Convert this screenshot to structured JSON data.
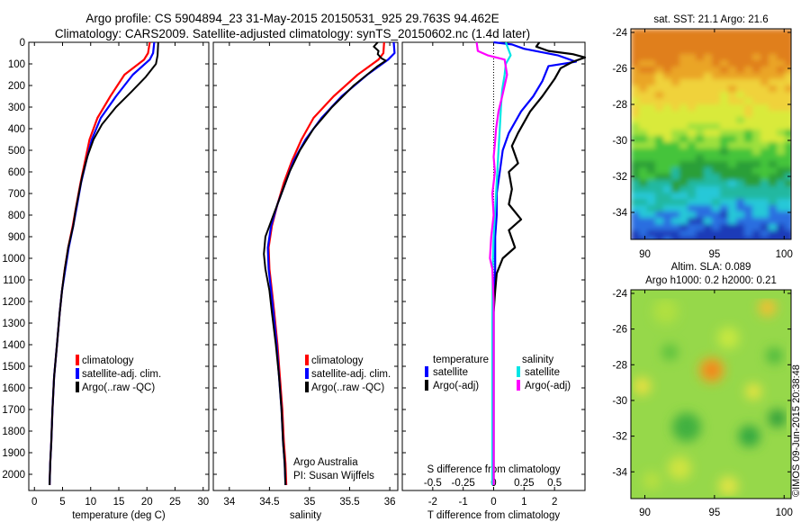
{
  "header": {
    "line1": "Argo profile: CS 5904894_23 31-May-2015 20150531_925 29.763S 94.462E",
    "line2": "Climatology: CARS2009. Satellite-adjusted climatology: synTS_20150602.nc (1.4d later)"
  },
  "credit": "©IMOS 09-Jun-2015 20:38:48",
  "colors": {
    "climatology": "#ff0000",
    "satellite": "#0000ff",
    "argo": "#000000",
    "s_satellite": "#00e5e5",
    "s_argo": "#ff00ff"
  },
  "chart_data": [
    {
      "id": "temperature",
      "type": "line",
      "xlabel": "temperature (deg C)",
      "ylabel": "",
      "xlim": [
        -1,
        31
      ],
      "ylim": [
        2075,
        0
      ],
      "xticks": [
        0,
        5,
        10,
        15,
        20,
        25,
        30
      ],
      "yticks": [
        0,
        100,
        200,
        300,
        400,
        500,
        600,
        700,
        800,
        900,
        1000,
        1100,
        1200,
        1300,
        1400,
        1500,
        1600,
        1700,
        1800,
        1900,
        2000
      ],
      "legend": [
        "climatology",
        "satellite-adj. clim.",
        "Argo(..raw -QC)"
      ],
      "series": [
        {
          "name": "climatology",
          "color": "#ff0000",
          "points": [
            [
              20.5,
              0
            ],
            [
              20.2,
              50
            ],
            [
              19.5,
              80
            ],
            [
              16,
              150
            ],
            [
              13.5,
              250
            ],
            [
              11.2,
              350
            ],
            [
              9.8,
              450
            ],
            [
              9,
              550
            ],
            [
              8.2,
              650
            ],
            [
              7.5,
              750
            ],
            [
              6.8,
              850
            ],
            [
              6,
              950
            ],
            [
              5.4,
              1050
            ],
            [
              4.9,
              1150
            ],
            [
              4.5,
              1250
            ],
            [
              4,
              1400
            ],
            [
              3.5,
              1550
            ],
            [
              3.2,
              1700
            ],
            [
              3,
              1850
            ],
            [
              2.8,
              1950
            ],
            [
              2.7,
              2050
            ]
          ]
        },
        {
          "name": "satellite-adj. clim.",
          "color": "#0000ff",
          "points": [
            [
              21.3,
              0
            ],
            [
              21.1,
              50
            ],
            [
              20.5,
              80
            ],
            [
              17.5,
              150
            ],
            [
              14.5,
              250
            ],
            [
              11.8,
              350
            ],
            [
              10.2,
              450
            ],
            [
              9.2,
              550
            ],
            [
              8.3,
              650
            ],
            [
              7.6,
              750
            ],
            [
              6.9,
              850
            ],
            [
              6.1,
              950
            ],
            [
              5.5,
              1050
            ],
            [
              4.9,
              1150
            ],
            [
              4.5,
              1250
            ],
            [
              4,
              1400
            ],
            [
              3.5,
              1550
            ],
            [
              3.2,
              1700
            ],
            [
              3,
              1850
            ],
            [
              2.8,
              1950
            ],
            [
              2.7,
              2050
            ]
          ]
        },
        {
          "name": "Argo(..raw -QC)",
          "color": "#000000",
          "points": [
            [
              22,
              0
            ],
            [
              21.9,
              60
            ],
            [
              21.6,
              100
            ],
            [
              19.8,
              160
            ],
            [
              17.2,
              230
            ],
            [
              14.5,
              300
            ],
            [
              12,
              380
            ],
            [
              10.5,
              450
            ],
            [
              9.4,
              530
            ],
            [
              8.5,
              620
            ],
            [
              7.9,
              700
            ],
            [
              7.3,
              780
            ],
            [
              6.9,
              850
            ],
            [
              6,
              950
            ],
            [
              5.4,
              1050
            ],
            [
              4.9,
              1150
            ],
            [
              4.5,
              1250
            ],
            [
              4,
              1400
            ],
            [
              3.5,
              1550
            ],
            [
              3.2,
              1700
            ],
            [
              3,
              1850
            ],
            [
              2.8,
              1950
            ],
            [
              2.7,
              2050
            ]
          ]
        }
      ]
    },
    {
      "id": "salinity",
      "type": "line",
      "xlabel": "salinity",
      "ylabel": "",
      "xlim": [
        33.8,
        36.1
      ],
      "ylim": [
        2075,
        0
      ],
      "xticks": [
        34,
        34.5,
        35,
        35.5,
        36
      ],
      "legend": [
        "climatology",
        "satellite-adj. clim.",
        "Argo(..raw -QC)"
      ],
      "annotation": [
        "Argo Australia",
        "PI: Susan Wijffels"
      ],
      "series": [
        {
          "name": "climatology",
          "color": "#ff0000",
          "points": [
            [
              35.93,
              0
            ],
            [
              35.92,
              50
            ],
            [
              35.86,
              80
            ],
            [
              35.6,
              150
            ],
            [
              35.3,
              250
            ],
            [
              35.05,
              350
            ],
            [
              34.9,
              450
            ],
            [
              34.78,
              550
            ],
            [
              34.68,
              650
            ],
            [
              34.6,
              750
            ],
            [
              34.53,
              850
            ],
            [
              34.49,
              950
            ],
            [
              34.5,
              1050
            ],
            [
              34.53,
              1150
            ],
            [
              34.56,
              1250
            ],
            [
              34.6,
              1400
            ],
            [
              34.63,
              1550
            ],
            [
              34.66,
              1700
            ],
            [
              34.68,
              1850
            ],
            [
              34.7,
              1950
            ],
            [
              34.71,
              2050
            ]
          ]
        },
        {
          "name": "satellite-adj. clim.",
          "color": "#0000ff",
          "points": [
            [
              36.05,
              0
            ],
            [
              36.06,
              50
            ],
            [
              35.98,
              80
            ],
            [
              35.72,
              150
            ],
            [
              35.4,
              250
            ],
            [
              35.15,
              350
            ],
            [
              34.95,
              450
            ],
            [
              34.8,
              550
            ],
            [
              34.7,
              650
            ],
            [
              34.6,
              750
            ],
            [
              34.52,
              850
            ],
            [
              34.48,
              950
            ],
            [
              34.49,
              1050
            ],
            [
              34.52,
              1150
            ],
            [
              34.55,
              1250
            ],
            [
              34.59,
              1400
            ],
            [
              34.62,
              1550
            ],
            [
              34.65,
              1700
            ],
            [
              34.67,
              1850
            ],
            [
              34.69,
              1950
            ],
            [
              34.7,
              2050
            ]
          ]
        },
        {
          "name": "Argo(..raw -QC)",
          "color": "#000000",
          "points": [
            [
              35.85,
              0
            ],
            [
              35.8,
              20
            ],
            [
              35.86,
              40
            ],
            [
              35.85,
              55
            ],
            [
              35.9,
              75
            ],
            [
              35.95,
              85
            ],
            [
              35.85,
              110
            ],
            [
              35.75,
              140
            ],
            [
              35.55,
              200
            ],
            [
              35.28,
              300
            ],
            [
              35.05,
              400
            ],
            [
              34.88,
              500
            ],
            [
              34.75,
              600
            ],
            [
              34.65,
              700
            ],
            [
              34.55,
              800
            ],
            [
              34.45,
              900
            ],
            [
              34.43,
              980
            ],
            [
              34.45,
              1050
            ],
            [
              34.5,
              1150
            ],
            [
              34.53,
              1250
            ],
            [
              34.58,
              1400
            ],
            [
              34.62,
              1550
            ],
            [
              34.65,
              1700
            ],
            [
              34.67,
              1850
            ],
            [
              34.69,
              1950
            ],
            [
              34.7,
              2050
            ]
          ]
        }
      ]
    },
    {
      "id": "difference",
      "type": "line",
      "xlabel": "T difference from climatology",
      "ylabel": "",
      "xlim": [
        -3,
        3
      ],
      "ylim": [
        2075,
        0
      ],
      "xticks": [
        -2,
        -1,
        0,
        1,
        2
      ],
      "xlabel_top": "S difference from climatology",
      "xticks_top": [
        "-0.5",
        "-0.25",
        "0",
        "0.25",
        "0.5"
      ],
      "legend_headers": [
        "temperature",
        "salinity"
      ],
      "legend_left": [
        "satellite",
        "Argo(-adj)"
      ],
      "legend_right": [
        "satellite",
        "Argo(-adj)"
      ],
      "series": [
        {
          "name": "T satellite",
          "color": "#0000ff",
          "points": [
            [
              0,
              0
            ],
            [
              0.6,
              10
            ],
            [
              1,
              30
            ],
            [
              2.1,
              60
            ],
            [
              2.7,
              90
            ],
            [
              1.8,
              110
            ],
            [
              1.6,
              180
            ],
            [
              1.3,
              250
            ],
            [
              0.9,
              320
            ],
            [
              0.5,
              420
            ],
            [
              0.3,
              500
            ],
            [
              0.2,
              600
            ],
            [
              0.1,
              700
            ],
            [
              0.1,
              800
            ],
            [
              0.05,
              900
            ],
            [
              0.05,
              1050
            ],
            [
              0,
              1200
            ],
            [
              0,
              1400
            ],
            [
              0,
              1600
            ],
            [
              0,
              1800
            ],
            [
              0,
              2050
            ]
          ]
        },
        {
          "name": "T Argo(-adj)",
          "color": "#000000",
          "points": [
            [
              1.5,
              0
            ],
            [
              1.4,
              20
            ],
            [
              1.8,
              40
            ],
            [
              2.6,
              55
            ],
            [
              3,
              70
            ],
            [
              2.6,
              90
            ],
            [
              2.2,
              120
            ],
            [
              2,
              170
            ],
            [
              1.6,
              250
            ],
            [
              1.2,
              320
            ],
            [
              0.8,
              420
            ],
            [
              0.6,
              480
            ],
            [
              0.8,
              560
            ],
            [
              0.5,
              600
            ],
            [
              0.6,
              680
            ],
            [
              0.5,
              750
            ],
            [
              0.9,
              820
            ],
            [
              0.5,
              870
            ],
            [
              0.7,
              950
            ],
            [
              0.3,
              1000
            ],
            [
              0.1,
              1070
            ],
            [
              0.05,
              1150
            ],
            [
              0,
              1250
            ],
            [
              0,
              1500
            ],
            [
              0,
              1800
            ],
            [
              0,
              2050
            ]
          ]
        },
        {
          "name": "S satellite",
          "color": "#00e5e5",
          "points": [
            [
              0.1,
              0
            ],
            [
              0.12,
              30
            ],
            [
              0.14,
              60
            ],
            [
              0.1,
              100
            ],
            [
              0.09,
              150
            ],
            [
              0.07,
              220
            ],
            [
              0.06,
              300
            ],
            [
              0.05,
              400
            ],
            [
              0.04,
              500
            ],
            [
              0.03,
              600
            ],
            [
              0.02,
              700
            ],
            [
              0.01,
              800
            ],
            [
              0,
              900
            ],
            [
              -0.005,
              1000
            ],
            [
              -0.008,
              1100
            ],
            [
              -0.01,
              1300
            ],
            [
              -0.01,
              1500
            ],
            [
              -0.01,
              1700
            ],
            [
              -0.01,
              1900
            ],
            [
              -0.01,
              2050
            ]
          ]
        },
        {
          "name": "S Argo(-adj)",
          "color": "#ff00ff",
          "points": [
            [
              -0.14,
              0
            ],
            [
              -0.13,
              40
            ],
            [
              -0.05,
              60
            ],
            [
              0.09,
              80
            ],
            [
              0.11,
              150
            ],
            [
              0.07,
              250
            ],
            [
              0.04,
              320
            ],
            [
              0.02,
              400
            ],
            [
              0.01,
              470
            ],
            [
              0,
              530
            ],
            [
              0.01,
              600
            ],
            [
              -0.01,
              700
            ],
            [
              0,
              800
            ],
            [
              -0.02,
              900
            ],
            [
              -0.03,
              1000
            ],
            [
              -0.01,
              1050
            ],
            [
              0,
              1200
            ],
            [
              0,
              1500
            ],
            [
              0,
              1800
            ],
            [
              0,
              2050
            ]
          ]
        }
      ]
    },
    {
      "id": "sst_map",
      "type": "heatmap",
      "title": "sat. SST: 21.1  Argo: 21.6",
      "xlim": [
        89,
        100.5
      ],
      "ylim": [
        -35.5,
        -23.8
      ],
      "xticks": [
        90,
        95,
        100
      ],
      "yticks": [
        -24,
        -26,
        -28,
        -30,
        -32,
        -34
      ],
      "marker": [
        94.462,
        -29.763
      ]
    },
    {
      "id": "sla_map",
      "type": "heatmap",
      "title_lines": [
        "Altim. SLA: 0.089",
        "Argo h1000: 0.2  h2000: 0.21"
      ],
      "xlim": [
        89,
        100.5
      ],
      "ylim": [
        -35.5,
        -23.8
      ],
      "xticks": [
        90,
        95,
        100
      ],
      "yticks": [
        -24,
        -26,
        -28,
        -30,
        -32,
        -34
      ],
      "marker": [
        94.462,
        -29.763
      ]
    }
  ]
}
